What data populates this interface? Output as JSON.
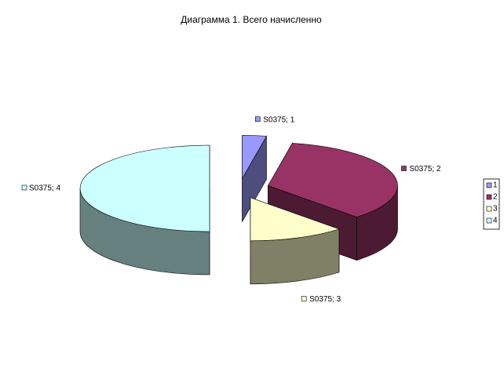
{
  "chart_data": {
    "type": "pie3d",
    "title": "Диаграмма 1. Всего начисленно",
    "series_name": "S0375",
    "categories": [
      "1",
      "2",
      "3",
      "4"
    ],
    "values": [
      3,
      35,
      12,
      50
    ],
    "data_labels": [
      "S0375; 1",
      "S0375; 2",
      "S0375; 3",
      "S0375; 4"
    ],
    "colors": [
      "#9999ff",
      "#993366",
      "#ffffcc",
      "#ccffff"
    ],
    "side_colors": [
      "#4d4d80",
      "#4d1a33",
      "#808066",
      "#668080"
    ],
    "legend": "right"
  }
}
